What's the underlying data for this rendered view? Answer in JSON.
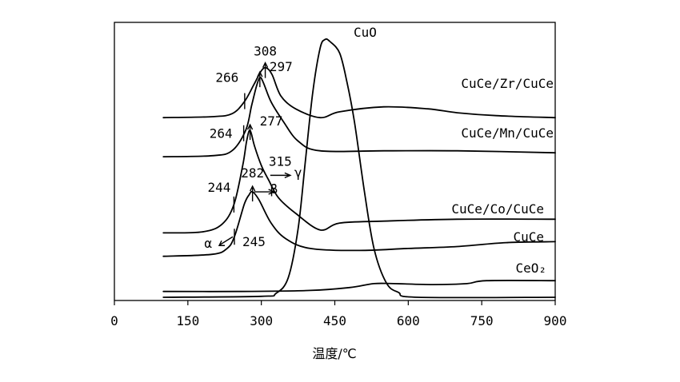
{
  "chart_data": {
    "type": "line",
    "xlabel": "温度/℃",
    "ylabel": "",
    "xlim": [
      0,
      900
    ],
    "xticks": [
      0,
      150,
      300,
      450,
      600,
      750,
      900
    ],
    "yticks_shown": false,
    "grid": false,
    "series": [
      {
        "name": "CuCe/Zr/CuCe",
        "points": [
          [
            100,
            1.84
          ],
          [
            200,
            1.85
          ],
          [
            240,
            1.88
          ],
          [
            265,
            2.0
          ],
          [
            285,
            2.18
          ],
          [
            300,
            2.32
          ],
          [
            310,
            2.35
          ],
          [
            322,
            2.28
          ],
          [
            340,
            2.06
          ],
          [
            370,
            1.93
          ],
          [
            420,
            1.84
          ],
          [
            460,
            1.9
          ],
          [
            550,
            1.95
          ],
          [
            640,
            1.93
          ],
          [
            700,
            1.89
          ],
          [
            780,
            1.86
          ],
          [
            900,
            1.84
          ]
        ]
      },
      {
        "name": "CuCe/Mn/CuCe",
        "points": [
          [
            100,
            1.44
          ],
          [
            200,
            1.45
          ],
          [
            240,
            1.5
          ],
          [
            268,
            1.71
          ],
          [
            280,
            1.96
          ],
          [
            290,
            2.16
          ],
          [
            297,
            2.25
          ],
          [
            304,
            2.2
          ],
          [
            320,
            2.0
          ],
          [
            345,
            1.8
          ],
          [
            375,
            1.6
          ],
          [
            420,
            1.5
          ],
          [
            550,
            1.5
          ],
          [
            700,
            1.5
          ],
          [
            900,
            1.48
          ]
        ]
      },
      {
        "name": "CuCe/Co/CuCe",
        "points": [
          [
            100,
            0.66
          ],
          [
            180,
            0.67
          ],
          [
            220,
            0.75
          ],
          [
            244,
            0.95
          ],
          [
            262,
            1.35
          ],
          [
            270,
            1.6
          ],
          [
            277,
            1.71
          ],
          [
            286,
            1.55
          ],
          [
            300,
            1.35
          ],
          [
            315,
            1.2
          ],
          [
            335,
            1.02
          ],
          [
            370,
            0.86
          ],
          [
            420,
            0.69
          ],
          [
            460,
            0.76
          ],
          [
            550,
            0.78
          ],
          [
            700,
            0.8
          ],
          [
            900,
            0.8
          ]
        ]
      },
      {
        "name": "CuCe",
        "points": [
          [
            100,
            0.42
          ],
          [
            200,
            0.44
          ],
          [
            230,
            0.5
          ],
          [
            245,
            0.62
          ],
          [
            265,
            0.95
          ],
          [
            275,
            1.05
          ],
          [
            282,
            1.08
          ],
          [
            295,
            1.0
          ],
          [
            320,
            0.76
          ],
          [
            350,
            0.6
          ],
          [
            400,
            0.5
          ],
          [
            500,
            0.48
          ],
          [
            600,
            0.5
          ],
          [
            700,
            0.52
          ],
          [
            800,
            0.56
          ],
          [
            900,
            0.57
          ]
        ]
      },
      {
        "name": "CeO₂",
        "points": [
          [
            100,
            0.06
          ],
          [
            250,
            0.06
          ],
          [
            400,
            0.07
          ],
          [
            480,
            0.1
          ],
          [
            530,
            0.14
          ],
          [
            570,
            0.14
          ],
          [
            650,
            0.13
          ],
          [
            720,
            0.14
          ],
          [
            760,
            0.17
          ],
          [
            900,
            0.17
          ]
        ]
      },
      {
        "name": "CuO",
        "points": [
          [
            100,
            0.0
          ],
          [
            300,
            0.01
          ],
          [
            330,
            0.04
          ],
          [
            355,
            0.2
          ],
          [
            375,
            0.7
          ],
          [
            390,
            1.4
          ],
          [
            405,
            2.1
          ],
          [
            420,
            2.55
          ],
          [
            430,
            2.64
          ],
          [
            440,
            2.62
          ],
          [
            460,
            2.5
          ],
          [
            475,
            2.2
          ],
          [
            490,
            1.8
          ],
          [
            510,
            1.1
          ],
          [
            530,
            0.5
          ],
          [
            555,
            0.15
          ],
          [
            580,
            0.05
          ],
          [
            620,
            0.0
          ],
          [
            900,
            0.0
          ]
        ]
      }
    ],
    "annotations": [
      {
        "text": "308",
        "x": 308,
        "series": "CuCe/Zr/CuCe"
      },
      {
        "text": "266",
        "x": 266,
        "series": "CuCe/Zr/CuCe"
      },
      {
        "text": "297",
        "x": 297,
        "series": "CuCe/Mn/CuCe"
      },
      {
        "text": "264",
        "x": 264,
        "series": "CuCe/Mn/CuCe"
      },
      {
        "text": "277",
        "x": 277,
        "series": "CuCe/Co/CuCe"
      },
      {
        "text": "315",
        "x": 315,
        "series": "CuCe/Co/CuCe"
      },
      {
        "text": "γ",
        "x": 315,
        "series": "CuCe/Co/CuCe"
      },
      {
        "text": "244",
        "x": 244,
        "series": "CuCe/Co/CuCe"
      },
      {
        "text": "282",
        "x": 282,
        "series": "CuCe"
      },
      {
        "text": "β",
        "x": 282,
        "series": "CuCe"
      },
      {
        "text": "245",
        "x": 245,
        "series": "CuCe"
      },
      {
        "text": "α",
        "x": 245,
        "series": "CuCe"
      }
    ]
  }
}
